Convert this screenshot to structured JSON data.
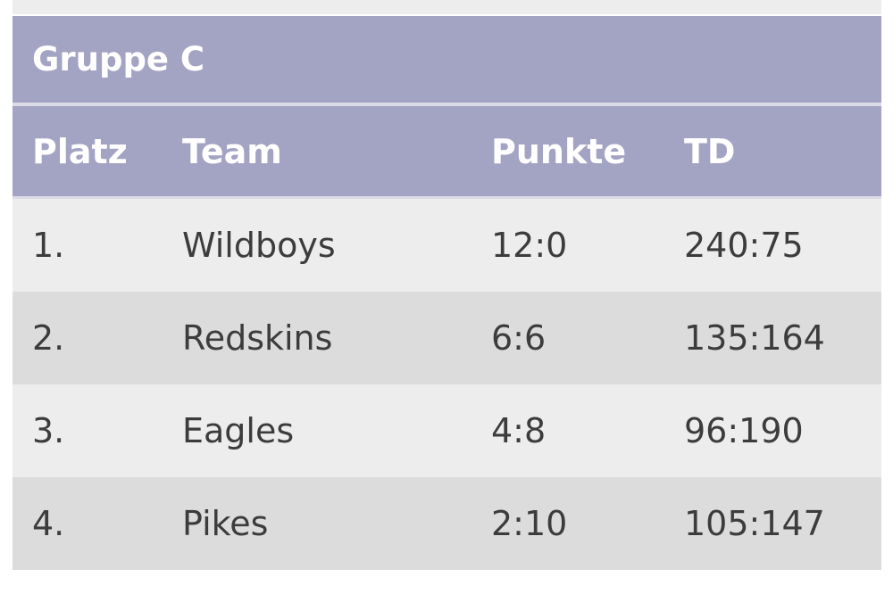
{
  "group": {
    "title": "Gruppe C"
  },
  "columns": {
    "platz": "Platz",
    "team": "Team",
    "punkte": "Punkte",
    "td": "TD"
  },
  "rows": [
    {
      "platz": "1.",
      "team": "Wildboys",
      "punkte": "12:0",
      "td": "240:75"
    },
    {
      "platz": "2.",
      "team": "Redskins",
      "punkte": "6:6",
      "td": "135:164"
    },
    {
      "platz": "3.",
      "team": "Eagles",
      "punkte": "4:8",
      "td": "96:190"
    },
    {
      "platz": "4.",
      "team": "Pikes",
      "punkte": "2:10",
      "td": "105:147"
    }
  ],
  "colors": {
    "header_bg": "#a3a3c3",
    "row_light": "#ededed",
    "row_dark": "#dcdcdc",
    "text": "#3c3c3c"
  }
}
